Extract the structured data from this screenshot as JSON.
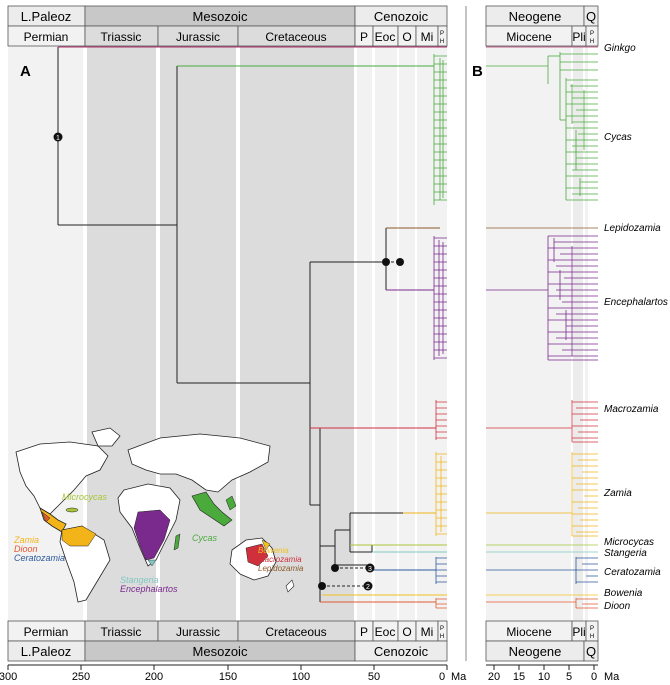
{
  "panel_a": {
    "label": "A",
    "era_top": {
      "paleozoic": "L.Paleoz",
      "mesozoic": "Mesozoic",
      "cenozoic": "Cenozoic"
    },
    "periods": {
      "permian": "Permian",
      "triassic": "Triassic",
      "jurassic": "Jurassic",
      "cretaceous": "Cretaceous",
      "p": "P",
      "eoc": "Eoc",
      "o": "O",
      "mi": "Mi",
      "ph_p": "P",
      "ph_h": "H"
    },
    "axis_ticks": [
      "300",
      "250",
      "200",
      "150",
      "100",
      "50",
      "0"
    ],
    "axis_unit": "Ma",
    "node_markers": [
      "1",
      "2",
      "3"
    ],
    "map_labels": {
      "microcycas": "Microcycas",
      "zamia": "Zamia",
      "dioon": "Dioon",
      "ceratozamia": "Ceratozamia",
      "stangeria": "Stangeria",
      "encephalartos": "Encephalartos",
      "cycas": "Cycas",
      "bowenia": "Bowenia",
      "macrozamia": "Macrozamia",
      "lepidozamia": "Lepidozamia"
    }
  },
  "panel_b": {
    "label": "B",
    "era_top": {
      "neogene": "Neogene",
      "q": "Q"
    },
    "epochs": {
      "miocene": "Miocene",
      "pli": "Pli",
      "ph_p": "P",
      "ph_h": "H"
    },
    "axis_ticks": [
      "20",
      "15",
      "10",
      "5",
      "0"
    ],
    "axis_unit": "Ma"
  },
  "taxa": [
    {
      "name": "Ginkgo",
      "color": "#b0306a"
    },
    {
      "name": "Cycas",
      "color": "#4aaa3c"
    },
    {
      "name": "Lepidozamia",
      "color": "#8b5a2b"
    },
    {
      "name": "Encephalartos",
      "color": "#7a2a8c"
    },
    {
      "name": "Macrozamia",
      "color": "#d0303c"
    },
    {
      "name": "Zamia",
      "color": "#f2b418"
    },
    {
      "name": "Microcycas",
      "color": "#a9c63a"
    },
    {
      "name": "Stangeria",
      "color": "#80c8c0"
    },
    {
      "name": "Ceratozamia",
      "color": "#2c5a9c"
    },
    {
      "name": "Bowenia",
      "color": "#f0c020"
    },
    {
      "name": "Dioon",
      "color": "#e05a30"
    }
  ]
}
